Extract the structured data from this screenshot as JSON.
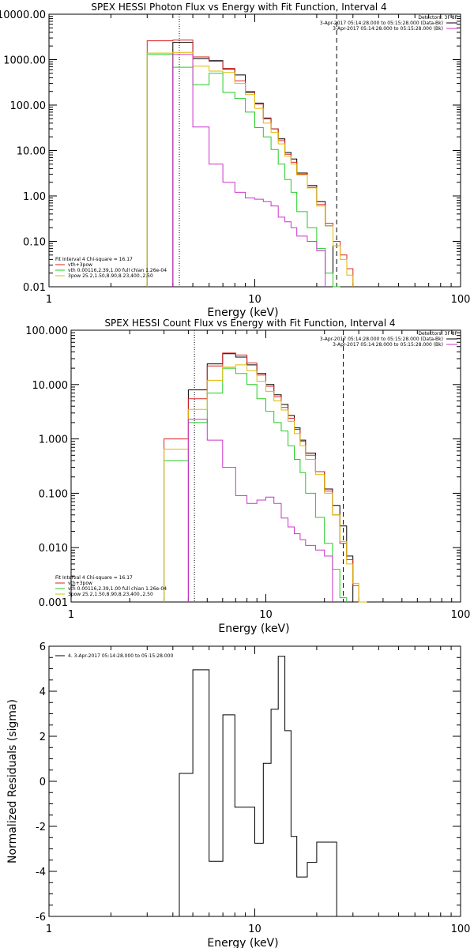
{
  "chart_data": [
    {
      "type": "line",
      "title": "SPEX HESSI Photon Flux vs Energy with Fit Function, Interval 4",
      "xlabel": "Energy (keV)",
      "ylabel": "",
      "x_scale": "log",
      "y_scale": "log",
      "xlim": [
        1,
        100
      ],
      "ylim": [
        0.01,
        10000
      ],
      "x_ticks": [
        {
          "value": 1,
          "label": "1"
        },
        {
          "value": 10,
          "label": "10"
        },
        {
          "value": 100,
          "label": "100"
        }
      ],
      "y_ticks": [
        {
          "value": 0.01,
          "label": "0.01"
        },
        {
          "value": 0.1,
          "label": "0.10"
        },
        {
          "value": 1,
          "label": "1.00"
        },
        {
          "value": 10,
          "label": "10.00"
        },
        {
          "value": 100,
          "label": "100.00"
        },
        {
          "value": 1000,
          "label": "1000.00"
        },
        {
          "value": 10000,
          "label": "10000.00"
        }
      ],
      "vlines": [
        {
          "x": 4.3,
          "style": "dotted",
          "color": "#000000"
        },
        {
          "x": 25.0,
          "style": "dashed",
          "color": "#000000"
        }
      ],
      "info_lines": [
        {
          "text": "Detectors: 3F 8F",
          "color": "#000000",
          "swatch": false
        },
        {
          "text": "3-Apr-2017 05:14:28.000 to 05:15:28.000 (Data-Bk)",
          "color": "#000000",
          "swatch": true
        },
        {
          "text": "3-Apr-2017 05:14:28.000 to 05:15:28.000 (Bk)",
          "color": "#cc33cc",
          "swatch": true
        }
      ],
      "legend": [
        {
          "text": "Fit Interval 4   Chi-square = 16.17",
          "color": "#000000",
          "swatch": false
        },
        {
          "text": "vth+3pow",
          "color": "#dd2222",
          "swatch": true
        },
        {
          "text": "vth 0.00116,2.39,1.00  full chian 1.26e-04",
          "color": "#22cc22",
          "swatch": true
        },
        {
          "text": "3pow 25.2,1.50,8.90,8.23,400.,2.50",
          "color": "#ddbb00",
          "swatch": true
        }
      ],
      "bin_edges": [
        3.0,
        4.0,
        5.0,
        6.0,
        7.0,
        8.0,
        9.0,
        10.0,
        11.0,
        12.0,
        13.0,
        14.0,
        15.0,
        16.0,
        18.0,
        20.0,
        22.0,
        24.0,
        26.0,
        28.0,
        30.0
      ],
      "series": [
        {
          "color": "#000000",
          "values": [
            null,
            2400,
            1050,
            950,
            620,
            460,
            190,
            110,
            50,
            30,
            18,
            9,
            6.5,
            3.2,
            1.7,
            0.75,
            0.22,
            null,
            null,
            null
          ]
        },
        {
          "color": "#dd2222",
          "values": [
            2600,
            2700,
            1150,
            920,
            640,
            340,
            200,
            105,
            52,
            30,
            16.5,
            8.3,
            5.5,
            3.0,
            1.55,
            0.65,
            0.25,
            0.1,
            0.05,
            0.025
          ]
        },
        {
          "color": "#22cc22",
          "values": [
            1300,
            680,
            280,
            500,
            190,
            140,
            70,
            32,
            20,
            10.5,
            5,
            2.3,
            1.2,
            0.45,
            0.2,
            0.07,
            0.02,
            0.01,
            null,
            null
          ]
        },
        {
          "color": "#ddbb00",
          "values": [
            1400,
            1450,
            720,
            560,
            520,
            300,
            170,
            85,
            40,
            25,
            14,
            7.5,
            5,
            2.9,
            1.5,
            0.6,
            0.22,
            0.08,
            0.04,
            0.018
          ]
        },
        {
          "color": "#cc33cc",
          "values": [
            null,
            1300,
            33,
            5,
            2.0,
            1.2,
            0.9,
            0.85,
            0.75,
            0.6,
            0.34,
            0.27,
            0.2,
            0.13,
            0.1,
            0.062,
            null,
            null,
            null,
            null
          ]
        }
      ]
    },
    {
      "type": "line",
      "title": "SPEX HESSI Count Flux vs Energy with Fit Function, Interval 4",
      "xlabel": "Energy (keV)",
      "ylabel": "",
      "x_scale": "log",
      "y_scale": "log",
      "xlim": [
        1,
        100
      ],
      "ylim": [
        0.001,
        100
      ],
      "x_ticks": [
        {
          "value": 1,
          "label": "1"
        },
        {
          "value": 10,
          "label": "10"
        },
        {
          "value": 100,
          "label": "100"
        }
      ],
      "y_ticks": [
        {
          "value": 0.001,
          "label": "0.001"
        },
        {
          "value": 0.01,
          "label": "0.010"
        },
        {
          "value": 0.1,
          "label": "0.100"
        },
        {
          "value": 1,
          "label": "1.000"
        },
        {
          "value": 10,
          "label": "10.000"
        },
        {
          "value": 100,
          "label": "100.000"
        }
      ],
      "vlines": [
        {
          "x": 4.3,
          "style": "dotted",
          "color": "#000000"
        },
        {
          "x": 25.0,
          "style": "dashed",
          "color": "#000000"
        }
      ],
      "info_lines": [
        {
          "text": "Detectors: 3F 8F",
          "color": "#000000",
          "swatch": false
        },
        {
          "text": "3-Apr-2017 05:14:28.000 to 05:15:28.000 (Data-Bk)",
          "color": "#000000",
          "swatch": true
        },
        {
          "text": "3-Apr-2017 05:14:28.000 to 05:15:28.000 (Bk)",
          "color": "#cc33cc",
          "swatch": true
        }
      ],
      "legend": [
        {
          "text": "Fit Interval 4   Chi-square = 16.17",
          "color": "#000000",
          "swatch": false
        },
        {
          "text": "vth+3pow",
          "color": "#dd2222",
          "swatch": true
        },
        {
          "text": "vth 0.00116,2.39,1.00  full chian 1.26e-04",
          "color": "#22cc22",
          "swatch": true
        },
        {
          "text": "3pow 25.2,1.50,8.90,8.23,400.,2.50",
          "color": "#ddbb00",
          "swatch": true
        }
      ],
      "bin_edges": [
        3.0,
        4.0,
        5.0,
        6.0,
        7.0,
        8.0,
        9.0,
        10.0,
        11.0,
        12.0,
        13.0,
        14.0,
        15.0,
        16.0,
        18.0,
        20.0,
        22.0,
        24.0,
        26.0,
        28.0,
        30.0,
        33.0
      ],
      "series": [
        {
          "color": "#000000",
          "values": [
            null,
            8.0,
            24,
            37,
            32,
            23,
            16,
            10,
            6.5,
            4.3,
            2.7,
            1.6,
            0.95,
            0.55,
            0.25,
            0.12,
            0.06,
            0.025,
            0.007,
            null,
            null
          ]
        },
        {
          "color": "#dd2222",
          "values": [
            1.0,
            5.5,
            22,
            38,
            35,
            25,
            15,
            9.3,
            6.0,
            3.8,
            2.4,
            1.5,
            0.9,
            0.5,
            0.25,
            0.11,
            0.04,
            0.012,
            0.006,
            0.002,
            0.001
          ]
        },
        {
          "color": "#22cc22",
          "values": [
            0.4,
            2.0,
            7.0,
            20,
            16,
            10,
            5.5,
            3.2,
            2.0,
            1.4,
            0.75,
            0.42,
            0.24,
            0.1,
            0.036,
            0.012,
            0.004,
            0.0012,
            null,
            null,
            null
          ]
        },
        {
          "color": "#ddbb00",
          "values": [
            0.65,
            3.5,
            12,
            21,
            23,
            18,
            11.5,
            7.5,
            5.0,
            3.4,
            2.1,
            1.25,
            0.75,
            0.42,
            0.22,
            0.1,
            0.04,
            0.013,
            0.005,
            0.0022,
            0.001
          ]
        },
        {
          "color": "#cc33cc",
          "values": [
            null,
            2.3,
            0.95,
            0.3,
            0.09,
            0.065,
            0.075,
            0.085,
            0.065,
            0.035,
            0.024,
            0.018,
            0.014,
            0.011,
            0.009,
            0.007,
            null,
            null,
            null,
            null,
            null
          ]
        }
      ]
    },
    {
      "type": "line",
      "title": "",
      "xlabel": "Energy (keV)",
      "ylabel": "Normalized Residuals (sigma)",
      "x_scale": "log",
      "y_scale": "linear",
      "xlim": [
        1,
        100
      ],
      "ylim": [
        -6,
        6
      ],
      "x_ticks": [
        {
          "value": 1,
          "label": "1"
        },
        {
          "value": 10,
          "label": "10"
        },
        {
          "value": 100,
          "label": "100"
        }
      ],
      "y_ticks": [
        {
          "value": -6,
          "label": "-6"
        },
        {
          "value": -4,
          "label": "-4"
        },
        {
          "value": -2,
          "label": "-2"
        },
        {
          "value": 0,
          "label": "0"
        },
        {
          "value": 2,
          "label": "2"
        },
        {
          "value": 4,
          "label": "4"
        },
        {
          "value": 6,
          "label": "6"
        }
      ],
      "legend": [
        {
          "text": "4. 3-Apr-2017 05:14:28.000 to 05:15:28.000",
          "color": "#000000",
          "swatch": true
        }
      ],
      "bin_edges": [
        4.3,
        5.0,
        6.0,
        7.0,
        8.0,
        9.0,
        10.0,
        11.0,
        12.0,
        13.0,
        14.0,
        15.0,
        16.0,
        18.0,
        20.0,
        22.0,
        25.0
      ],
      "series": [
        {
          "color": "#000000",
          "drop_ends_to_bottom": true,
          "values": [
            0.35,
            4.95,
            -3.55,
            2.95,
            -1.15,
            -1.15,
            -2.75,
            0.8,
            3.2,
            5.55,
            2.25,
            -2.45,
            -4.25,
            -3.6,
            -2.7,
            -2.7
          ]
        }
      ]
    }
  ]
}
